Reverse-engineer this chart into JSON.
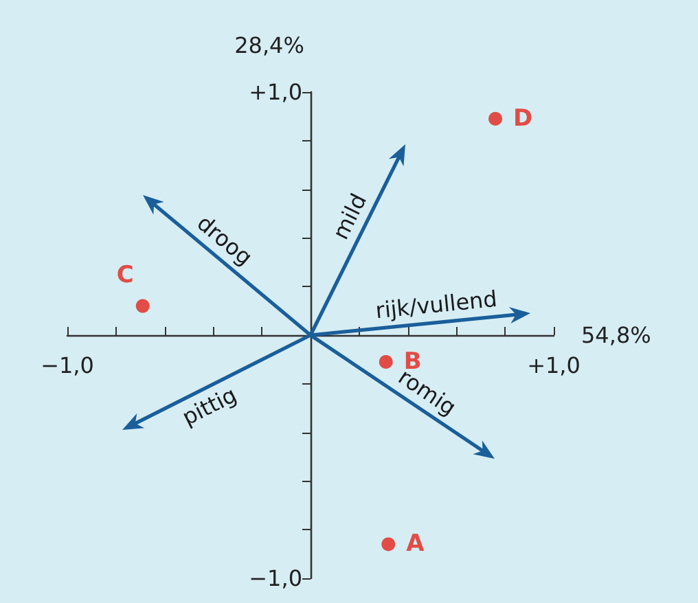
{
  "chart_data": {
    "type": "scatter",
    "xlabel": "54,8%",
    "ylabel": "28,4%",
    "xlim": [
      -1,
      1
    ],
    "ylim": [
      -1,
      1
    ],
    "marker": "circle",
    "xticks": [
      {
        "value": -1,
        "label": "−1,0"
      },
      {
        "value": -0.8,
        "label": null
      },
      {
        "value": -0.6,
        "label": null
      },
      {
        "value": -0.4,
        "label": null
      },
      {
        "value": -0.2,
        "label": null
      },
      {
        "value": 0,
        "label": null
      },
      {
        "value": 0.2,
        "label": null
      },
      {
        "value": 0.4,
        "label": null
      },
      {
        "value": 0.6,
        "label": null
      },
      {
        "value": 0.8,
        "label": null
      },
      {
        "value": 1,
        "label": "+1,0"
      }
    ],
    "yticks": [
      {
        "value": -1,
        "label": "−1,0"
      },
      {
        "value": -0.8,
        "label": null
      },
      {
        "value": -0.6,
        "label": null
      },
      {
        "value": -0.4,
        "label": null
      },
      {
        "value": -0.2,
        "label": null
      },
      {
        "value": 0,
        "label": null
      },
      {
        "value": 0.2,
        "label": null
      },
      {
        "value": 0.4,
        "label": null
      },
      {
        "value": 0.6,
        "label": null
      },
      {
        "value": 0.8,
        "label": null
      },
      {
        "value": 1,
        "label": "+1,0"
      }
    ],
    "series": [
      {
        "name": "A",
        "color": "#e3231b",
        "x": [
          0.32
        ],
        "values": [
          -0.86
        ]
      },
      {
        "name": "B",
        "color": "#e3231b",
        "x": [
          0.31
        ],
        "values": [
          -0.11
        ]
      },
      {
        "name": "C",
        "color": "#e3231b",
        "x": [
          -0.69
        ],
        "values": [
          0.12
        ]
      },
      {
        "name": "D",
        "color": "#e3231b",
        "x": [
          0.76
        ],
        "values": [
          0.89
        ]
      }
    ],
    "annotations": [
      "mild",
      "droog",
      "rijk/vullend",
      "romig",
      "pittig"
    ]
  }
}
